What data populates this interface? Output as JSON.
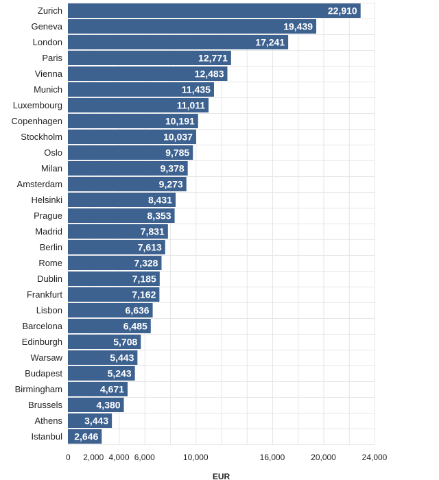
{
  "colors": {
    "bar": "#3d6290",
    "grid": "#e6e6e6",
    "text": "#222222",
    "value_text": "#ffffff"
  },
  "chart_data": {
    "type": "bar",
    "orientation": "horizontal",
    "categories": [
      "Zurich",
      "Geneva",
      "London",
      "Paris",
      "Vienna",
      "Munich",
      "Luxembourg",
      "Copenhagen",
      "Stockholm",
      "Oslo",
      "Milan",
      "Amsterdam",
      "Helsinki",
      "Prague",
      "Madrid",
      "Berlin",
      "Rome",
      "Dublin",
      "Frankfurt",
      "Lisbon",
      "Barcelona",
      "Edinburgh",
      "Warsaw",
      "Budapest",
      "Birmingham",
      "Brussels",
      "Athens",
      "Istanbul"
    ],
    "values": [
      22910,
      19439,
      17241,
      12771,
      12483,
      11435,
      11011,
      10191,
      10037,
      9785,
      9378,
      9273,
      8431,
      8353,
      7831,
      7613,
      7328,
      7185,
      7162,
      6636,
      6485,
      5708,
      5443,
      5243,
      4671,
      4380,
      3443,
      2646
    ],
    "value_labels": [
      "22,910",
      "19,439",
      "17,241",
      "12,771",
      "12,483",
      "11,435",
      "11,011",
      "10,191",
      "10,037",
      "9,785",
      "9,378",
      "9,273",
      "8,431",
      "8,353",
      "7,831",
      "7,613",
      "7,328",
      "7,185",
      "7,162",
      "6,636",
      "6,485",
      "5,708",
      "5,443",
      "5,243",
      "4,671",
      "4,380",
      "3,443",
      "2,646"
    ],
    "xticks": [
      0,
      2000,
      4000,
      6000,
      10000,
      16000,
      20000,
      24000
    ],
    "xtick_labels": [
      "0",
      "2,000",
      "4,000",
      "6,000",
      "10,000",
      "16,000",
      "20,000",
      "24,000"
    ],
    "xlabel": "EUR",
    "ylabel": "",
    "title": "",
    "xlim": [
      0,
      24000
    ],
    "grid": true,
    "legend": "none"
  }
}
